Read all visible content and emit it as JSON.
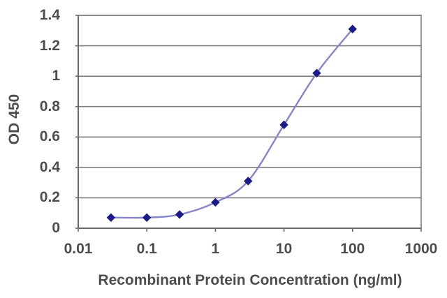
{
  "chart_data": {
    "type": "line",
    "title": "",
    "xlabel": "Recombinant Protein Concentration (ng/ml)",
    "ylabel": "OD 450",
    "xscale": "log",
    "xlim": [
      0.01,
      1000
    ],
    "ylim": [
      0,
      1.4
    ],
    "x_ticks": [
      "0.01",
      "0.1",
      "1",
      "10",
      "100",
      "1000"
    ],
    "y_ticks": [
      "0",
      "0.2",
      "0.4",
      "0.6",
      "0.8",
      "1",
      "1.2",
      "1.4"
    ],
    "x": [
      0.03,
      0.1,
      0.3,
      1,
      3,
      10,
      30,
      100
    ],
    "y": [
      0.07,
      0.07,
      0.09,
      0.17,
      0.31,
      0.68,
      1.02,
      1.31
    ],
    "grid": "horizontal",
    "legend": "none",
    "marker": "diamond",
    "colors": {
      "line": "#8585c7",
      "marker": "#1b1b8a",
      "grid": "#7d7d7d",
      "axis": "#696969",
      "text": "#4d4d4d",
      "background": "#ffffff"
    }
  }
}
